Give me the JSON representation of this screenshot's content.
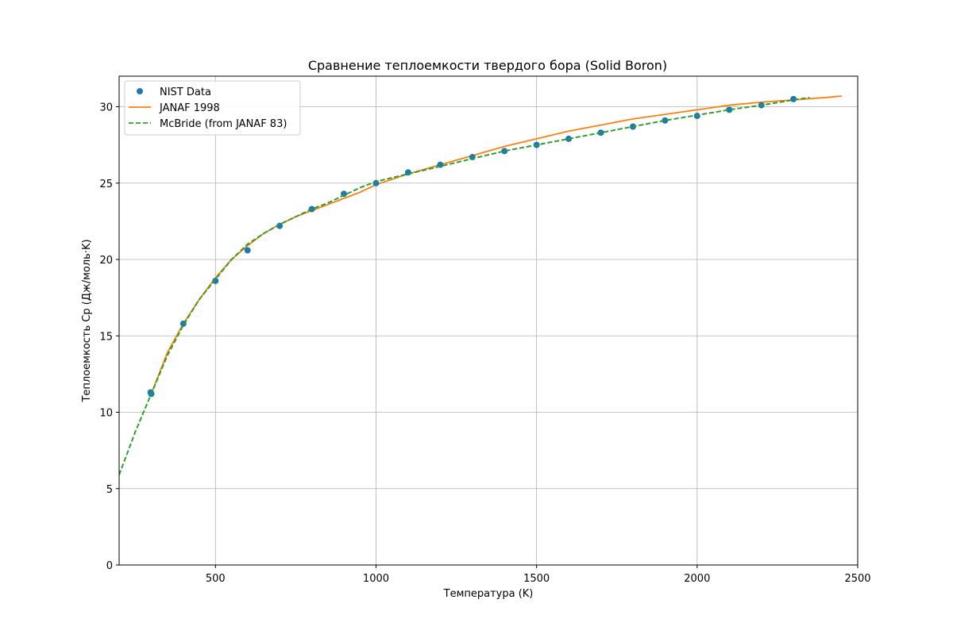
{
  "chart_data": {
    "type": "line",
    "title": "Сравнение теплоемкости твердого бора (Solid Boron)",
    "xlabel": "Температура (K)",
    "ylabel": "Теплоемкость Cp (Дж/моль·K)",
    "xlim": [
      200,
      2500
    ],
    "ylim": [
      0,
      32
    ],
    "xticks": [
      500,
      1000,
      1500,
      2000,
      2500
    ],
    "yticks": [
      0,
      5,
      10,
      15,
      20,
      25,
      30
    ],
    "grid": true,
    "legend_position": "upper-left",
    "series": [
      {
        "name": "NIST Data",
        "style": "markers",
        "color": "#1f77b4",
        "x": [
          298.15,
          300,
          400,
          500,
          600,
          700,
          800,
          900,
          1000,
          1100,
          1200,
          1300,
          1400,
          1500,
          1600,
          1700,
          1800,
          1900,
          2000,
          2100,
          2200,
          2300
        ],
        "y": [
          11.3,
          11.2,
          15.8,
          18.6,
          20.6,
          22.2,
          23.3,
          24.3,
          25.0,
          25.7,
          26.2,
          26.7,
          27.1,
          27.5,
          27.9,
          28.3,
          28.7,
          29.1,
          29.4,
          29.8,
          30.1,
          30.5
        ]
      },
      {
        "name": "JANAF 1998",
        "style": "solid",
        "color": "#ff7f0e",
        "x": [
          300,
          350,
          400,
          450,
          500,
          550,
          600,
          650,
          700,
          750,
          800,
          850,
          900,
          950,
          1000,
          1100,
          1200,
          1300,
          1400,
          1500,
          1600,
          1700,
          1800,
          1900,
          2000,
          2100,
          2200,
          2300,
          2400,
          2450
        ],
        "y": [
          11.2,
          13.9,
          15.8,
          17.4,
          18.8,
          20.0,
          20.9,
          21.7,
          22.3,
          22.8,
          23.2,
          23.6,
          24.0,
          24.4,
          24.9,
          25.6,
          26.2,
          26.8,
          27.4,
          27.9,
          28.4,
          28.8,
          29.2,
          29.5,
          29.8,
          30.1,
          30.3,
          30.45,
          30.6,
          30.7
        ]
      },
      {
        "name": "McBride (from JANAF 83)",
        "style": "dashed",
        "color": "#2ca02c",
        "x": [
          200,
          250,
          300,
          350,
          400,
          450,
          500,
          550,
          600,
          650,
          700,
          750,
          800,
          850,
          900,
          950,
          1000,
          1100,
          1200,
          1300,
          1400,
          1500,
          1600,
          1700,
          1800,
          1900,
          2000,
          2100,
          2200,
          2300,
          2350
        ],
        "y": [
          5.9,
          8.7,
          11.2,
          13.7,
          15.7,
          17.4,
          18.7,
          20.0,
          21.0,
          21.7,
          22.3,
          22.8,
          23.3,
          23.7,
          24.2,
          24.7,
          25.1,
          25.6,
          26.1,
          26.6,
          27.1,
          27.5,
          27.9,
          28.3,
          28.7,
          29.1,
          29.45,
          29.8,
          30.1,
          30.45,
          30.6
        ]
      }
    ]
  }
}
